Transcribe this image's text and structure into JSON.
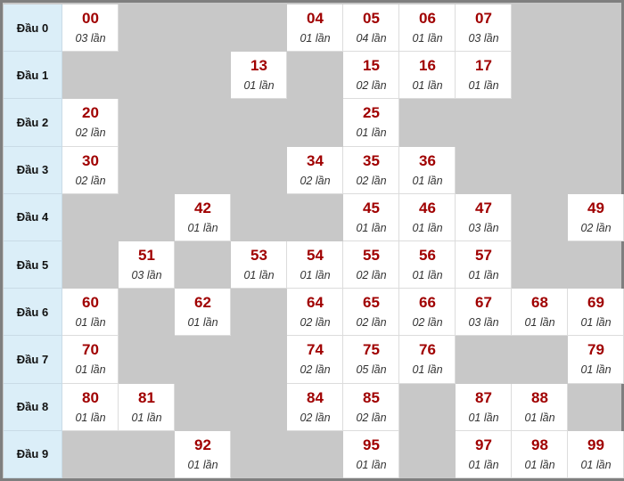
{
  "colors": {
    "number": "#a00000",
    "header_bg": "#dbeef8",
    "empty_bg": "#c8c8c8",
    "cell_bg": "#ffffff"
  },
  "rows": [
    {
      "label": "Đầu 0",
      "cells": [
        {
          "num": "00",
          "count": "03 lần"
        },
        null,
        null,
        null,
        {
          "num": "04",
          "count": "01 lần"
        },
        {
          "num": "05",
          "count": "04 lần"
        },
        {
          "num": "06",
          "count": "01 lần"
        },
        {
          "num": "07",
          "count": "03 lần"
        },
        null,
        null
      ]
    },
    {
      "label": "Đầu 1",
      "cells": [
        null,
        null,
        null,
        {
          "num": "13",
          "count": "01 lần"
        },
        null,
        {
          "num": "15",
          "count": "02 lần"
        },
        {
          "num": "16",
          "count": "01 lần"
        },
        {
          "num": "17",
          "count": "01 lần"
        },
        null,
        null
      ]
    },
    {
      "label": "Đầu 2",
      "cells": [
        {
          "num": "20",
          "count": "02 lần"
        },
        null,
        null,
        null,
        null,
        {
          "num": "25",
          "count": "01 lần"
        },
        null,
        null,
        null,
        null
      ]
    },
    {
      "label": "Đầu 3",
      "cells": [
        {
          "num": "30",
          "count": "02 lần"
        },
        null,
        null,
        null,
        {
          "num": "34",
          "count": "02 lần"
        },
        {
          "num": "35",
          "count": "02 lần"
        },
        {
          "num": "36",
          "count": "01 lần"
        },
        null,
        null,
        null
      ]
    },
    {
      "label": "Đầu 4",
      "cells": [
        null,
        null,
        {
          "num": "42",
          "count": "01 lần"
        },
        null,
        null,
        {
          "num": "45",
          "count": "01 lần"
        },
        {
          "num": "46",
          "count": "01 lần"
        },
        {
          "num": "47",
          "count": "03 lần"
        },
        null,
        {
          "num": "49",
          "count": "02 lần"
        }
      ]
    },
    {
      "label": "Đầu 5",
      "cells": [
        null,
        {
          "num": "51",
          "count": "03 lần"
        },
        null,
        {
          "num": "53",
          "count": "01 lần"
        },
        {
          "num": "54",
          "count": "01 lần"
        },
        {
          "num": "55",
          "count": "02 lần"
        },
        {
          "num": "56",
          "count": "01 lần"
        },
        {
          "num": "57",
          "count": "01 lần"
        },
        null,
        null
      ]
    },
    {
      "label": "Đầu 6",
      "cells": [
        {
          "num": "60",
          "count": "01 lần"
        },
        null,
        {
          "num": "62",
          "count": "01 lần"
        },
        null,
        {
          "num": "64",
          "count": "02 lần"
        },
        {
          "num": "65",
          "count": "02 lần"
        },
        {
          "num": "66",
          "count": "02 lần"
        },
        {
          "num": "67",
          "count": "03 lần"
        },
        {
          "num": "68",
          "count": "01 lần"
        },
        {
          "num": "69",
          "count": "01 lần"
        }
      ]
    },
    {
      "label": "Đầu 7",
      "cells": [
        {
          "num": "70",
          "count": "01 lần"
        },
        null,
        null,
        null,
        {
          "num": "74",
          "count": "02 lần"
        },
        {
          "num": "75",
          "count": "05 lần"
        },
        {
          "num": "76",
          "count": "01 lần"
        },
        null,
        null,
        {
          "num": "79",
          "count": "01 lần"
        }
      ]
    },
    {
      "label": "Đầu 8",
      "cells": [
        {
          "num": "80",
          "count": "01 lần"
        },
        {
          "num": "81",
          "count": "01 lần"
        },
        null,
        null,
        {
          "num": "84",
          "count": "02 lần"
        },
        {
          "num": "85",
          "count": "02 lần"
        },
        null,
        {
          "num": "87",
          "count": "01 lần"
        },
        {
          "num": "88",
          "count": "01 lần"
        },
        null
      ]
    },
    {
      "label": "Đầu 9",
      "cells": [
        null,
        null,
        {
          "num": "92",
          "count": "01 lần"
        },
        null,
        null,
        {
          "num": "95",
          "count": "01 lần"
        },
        null,
        {
          "num": "97",
          "count": "01 lần"
        },
        {
          "num": "98",
          "count": "01 lần"
        },
        {
          "num": "99",
          "count": "01 lần"
        }
      ]
    }
  ]
}
